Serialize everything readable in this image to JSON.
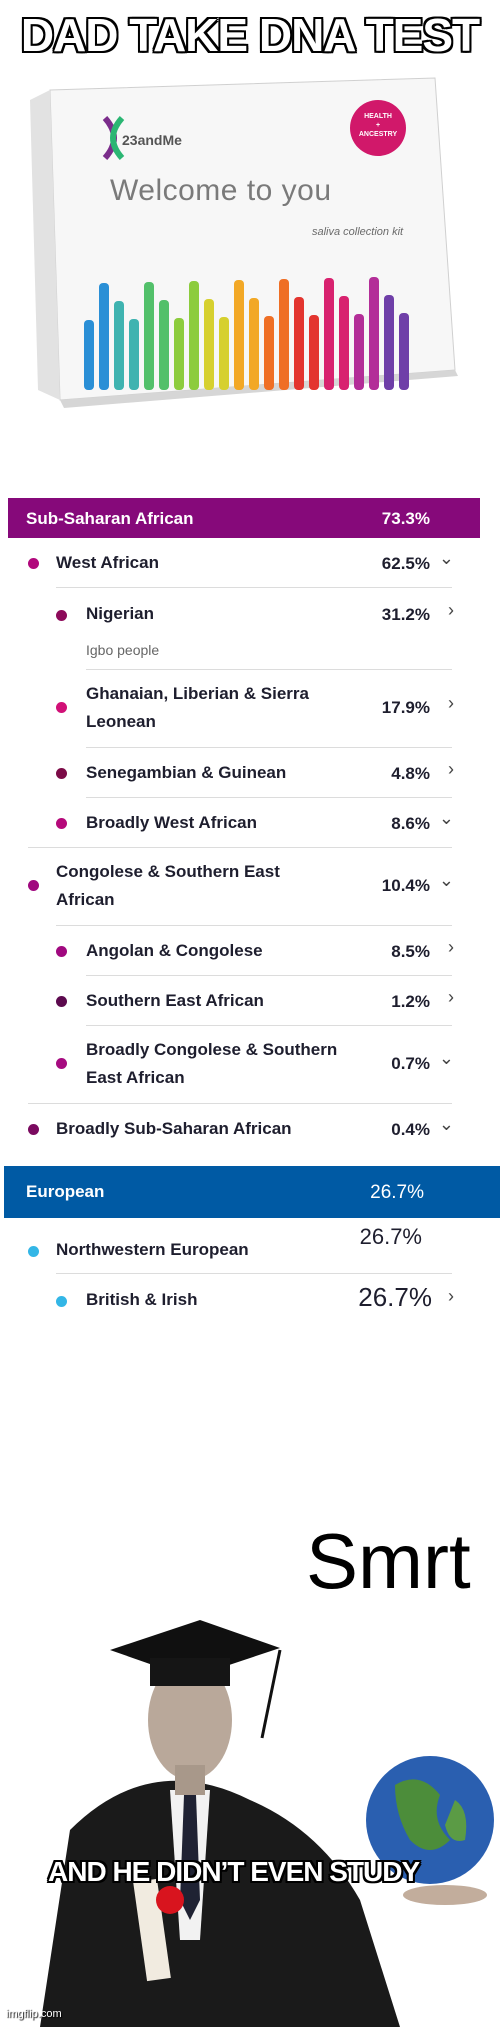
{
  "captions": {
    "top": "DAD TAKE DNA TEST",
    "bottom": "AND HE DIDN’T EVEN STUDY",
    "smrt": "Smrt",
    "watermark": "imgflip.com"
  },
  "kit": {
    "brand": "23andMe",
    "badge_line1": "HEALTH",
    "badge_line2": "+",
    "badge_line3": "ANCESTRY",
    "welcome": "Welcome to you",
    "sub": "saliva collection kit"
  },
  "report": {
    "sections": [
      {
        "label": "Sub-Saharan African",
        "pct": "73.3%",
        "color": "#86097a"
      },
      {
        "label": "European",
        "pct": "26.7%",
        "color": "#005aa4"
      }
    ],
    "rows": [
      {
        "name": "West African",
        "pct": "62.5%",
        "chev": "⌄",
        "dot": "#b1087c"
      },
      {
        "name": "Nigerian",
        "pct": "31.2%",
        "chev": "›",
        "dot": "#8d0a5a",
        "note": "Igbo people"
      },
      {
        "name_l1": "Ghanaian, Liberian & Sierra",
        "name_l2": "Leonean",
        "pct": "17.9%",
        "chev": "›",
        "dot": "#d11077"
      },
      {
        "name": "Senegambian & Guinean",
        "pct": "4.8%",
        "chev": "›",
        "dot": "#7c0b47"
      },
      {
        "name": "Broadly West African",
        "pct": "8.6%",
        "chev": "⌄",
        "dot": "#b5097a"
      },
      {
        "name_l1": "Congolese & Southern East",
        "name_l2": "African",
        "pct": "10.4%",
        "chev": "⌄",
        "dot": "#a0087f"
      },
      {
        "name": "Angolan & Congolese",
        "pct": "8.5%",
        "chev": "›",
        "dot": "#a0087f"
      },
      {
        "name": "Southern East African",
        "pct": "1.2%",
        "chev": "›",
        "dot": "#5c0a4e"
      },
      {
        "name_l1": "Broadly Congolese & Southern",
        "name_l2": "East African",
        "pct": "0.7%",
        "chev": "⌄",
        "dot": "#a60b80"
      },
      {
        "name": "Broadly Sub-Saharan African",
        "pct": "0.4%",
        "chev": "⌄",
        "dot": "#7a0a5f"
      },
      {
        "name": "Northwestern European",
        "pct": "26.7%",
        "chev": "",
        "dot": "#33b6e6"
      },
      {
        "name": "British & Irish",
        "pct": "26.7%",
        "chev": "›",
        "dot": "#33b6e6"
      }
    ]
  },
  "colors": {
    "african_band": "#86097a",
    "european_band": "#005aa4"
  }
}
